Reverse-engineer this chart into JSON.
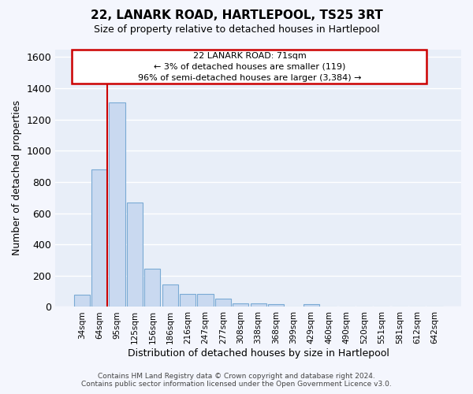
{
  "title": "22, LANARK ROAD, HARTLEPOOL, TS25 3RT",
  "subtitle": "Size of property relative to detached houses in Hartlepool",
  "xlabel": "Distribution of detached houses by size in Hartlepool",
  "ylabel": "Number of detached properties",
  "categories": [
    "34sqm",
    "64sqm",
    "95sqm",
    "125sqm",
    "156sqm",
    "186sqm",
    "216sqm",
    "247sqm",
    "277sqm",
    "308sqm",
    "338sqm",
    "368sqm",
    "399sqm",
    "429sqm",
    "460sqm",
    "490sqm",
    "520sqm",
    "551sqm",
    "581sqm",
    "612sqm",
    "642sqm"
  ],
  "values": [
    80,
    880,
    1310,
    670,
    245,
    145,
    85,
    85,
    55,
    25,
    20,
    15,
    0,
    15,
    0,
    0,
    0,
    0,
    0,
    0,
    0
  ],
  "bar_color": "#c9d9f0",
  "bar_edge_color": "#7aaad4",
  "annotation_line1": "22 LANARK ROAD: 71sqm",
  "annotation_line2": "← 3% of detached houses are smaller (119)",
  "annotation_line3": "96% of semi-detached houses are larger (3,384) →",
  "annotation_box_color": "#ffffff",
  "annotation_border_color": "#cc0000",
  "red_line_x": 1.45,
  "ylim": [
    0,
    1650
  ],
  "yticks": [
    0,
    200,
    400,
    600,
    800,
    1000,
    1200,
    1400,
    1600
  ],
  "background_color": "#e8eef8",
  "grid_color": "#ffffff",
  "footer_line1": "Contains HM Land Registry data © Crown copyright and database right 2024.",
  "footer_line2": "Contains public sector information licensed under the Open Government Licence v3.0."
}
